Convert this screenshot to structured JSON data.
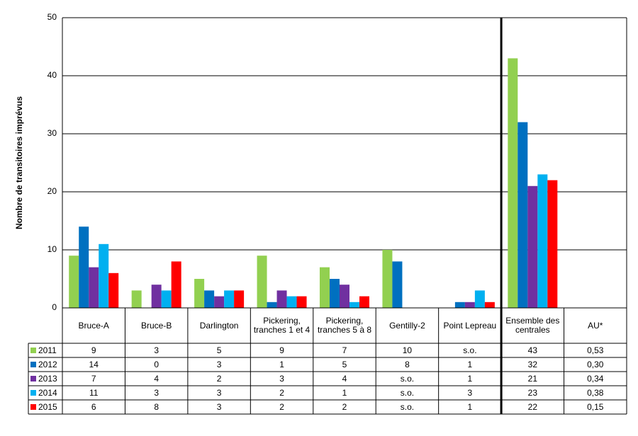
{
  "chart_data": {
    "type": "bar",
    "y_axis_label": "Nombre de transitoires imprévus",
    "categories": [
      "Bruce-A",
      "Bruce-B",
      "Darlington",
      "Pickering, tranches 1 et 4",
      "Pickering, tranches 5 à 8",
      "Gentilly-2",
      "Point Lepreau",
      "Ensemble des centrales"
    ],
    "series": [
      {
        "name": "2011",
        "color": "#92d050",
        "values": [
          9,
          3,
          5,
          9,
          7,
          10,
          null,
          43
        ],
        "value_labels": [
          "9",
          "3",
          "5",
          "9",
          "7",
          "10",
          "s.o.",
          "43"
        ]
      },
      {
        "name": "2012",
        "color": "#0070c0",
        "values": [
          14,
          0,
          3,
          1,
          5,
          8,
          1,
          32
        ],
        "value_labels": [
          "14",
          "0",
          "3",
          "1",
          "5",
          "8",
          "1",
          "32"
        ]
      },
      {
        "name": "2013",
        "color": "#7030a0",
        "values": [
          7,
          4,
          2,
          3,
          4,
          null,
          1,
          21
        ],
        "value_labels": [
          "7",
          "4",
          "2",
          "3",
          "4",
          "s.o.",
          "1",
          "21"
        ]
      },
      {
        "name": "2014",
        "color": "#00b0f0",
        "values": [
          11,
          3,
          3,
          2,
          1,
          null,
          3,
          23
        ],
        "value_labels": [
          "11",
          "3",
          "3",
          "2",
          "1",
          "s.o.",
          "3",
          "23"
        ]
      },
      {
        "name": "2015",
        "color": "#ff0000",
        "values": [
          6,
          8,
          3,
          2,
          2,
          null,
          1,
          22
        ],
        "value_labels": [
          "6",
          "8",
          "3",
          "2",
          "2",
          "s.o.",
          "1",
          "22"
        ]
      }
    ],
    "au": {
      "label": "AU*",
      "values": [
        0.53,
        0.3,
        0.34,
        0.38,
        0.15
      ],
      "value_labels": [
        "0,53",
        "0,30",
        "0,34",
        "0,38",
        "0,15"
      ]
    },
    "ylim": [
      0,
      50
    ],
    "yticks": [
      0,
      10,
      20,
      30,
      40,
      50
    ],
    "grid": true
  }
}
